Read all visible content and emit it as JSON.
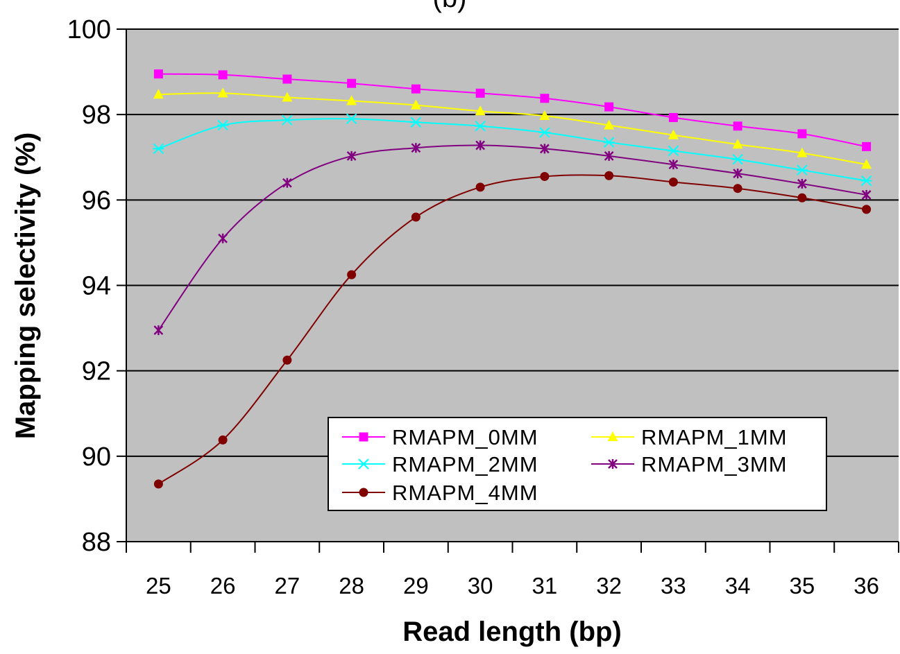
{
  "chart_data": {
    "type": "line",
    "title": "(b)",
    "xlabel": "Read length (bp)",
    "ylabel": "Mapping selectivity (%)",
    "x": [
      25,
      26,
      27,
      28,
      29,
      30,
      31,
      32,
      33,
      34,
      35,
      36
    ],
    "x_tick_labels": [
      "25",
      "26",
      "27",
      "28",
      "29",
      "30",
      "31",
      "32",
      "33",
      "34",
      "35",
      "36"
    ],
    "ylim": [
      88,
      100
    ],
    "y_ticks": [
      88,
      90,
      92,
      94,
      96,
      98,
      100
    ],
    "y_tick_labels": [
      "88",
      "90",
      "92",
      "94",
      "96",
      "98",
      "100"
    ],
    "grid": "horizontal major gridlines",
    "plot_background": "#c0c0c0",
    "legend_position": "bottom-right",
    "series": [
      {
        "name": "RMAPM_0MM",
        "color": "#ff00ff",
        "marker": "square",
        "values": [
          98.95,
          98.93,
          98.83,
          98.73,
          98.6,
          98.5,
          98.38,
          98.18,
          97.93,
          97.73,
          97.55,
          97.25
        ]
      },
      {
        "name": "RMAPM_1MM",
        "color": "#ffff00",
        "marker": "triangle",
        "values": [
          98.47,
          98.5,
          98.4,
          98.32,
          98.22,
          98.08,
          97.97,
          97.75,
          97.52,
          97.3,
          97.1,
          96.83
        ]
      },
      {
        "name": "RMAPM_2MM",
        "color": "#00ffff",
        "marker": "asterisk",
        "values": [
          97.2,
          97.75,
          97.87,
          97.9,
          97.82,
          97.73,
          97.58,
          97.35,
          97.15,
          96.95,
          96.7,
          96.45
        ]
      },
      {
        "name": "RMAPM_3MM",
        "color": "#800080",
        "marker": "star",
        "values": [
          92.95,
          95.1,
          96.4,
          97.03,
          97.22,
          97.28,
          97.2,
          97.03,
          96.83,
          96.62,
          96.38,
          96.12
        ]
      },
      {
        "name": "RMAPM_4MM",
        "color": "#800000",
        "marker": "circle",
        "values": [
          89.35,
          90.38,
          92.25,
          94.25,
          95.6,
          96.3,
          96.55,
          96.57,
          96.42,
          96.27,
          96.05,
          95.78
        ]
      }
    ]
  }
}
